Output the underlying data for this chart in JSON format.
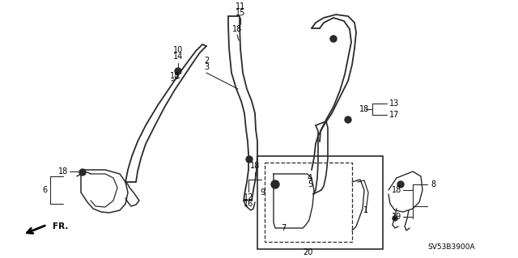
{
  "bg_color": "#ffffff",
  "line_color": "#2a2a2a",
  "part_number": "SV53B3900A",
  "fr_label": "FR."
}
